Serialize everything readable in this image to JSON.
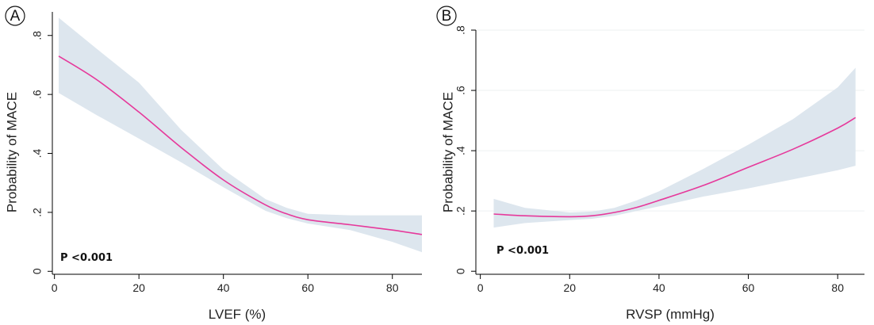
{
  "colors": {
    "curve": "#e6399b",
    "ci_band": "#dde6ee",
    "grid": "#eef0f2",
    "axis": "#000000",
    "text": "#222222"
  },
  "chart_data": [
    {
      "panel_label": "A",
      "type": "line",
      "xlabel": "LVEF (%)",
      "ylabel": "Probability of MACE",
      "xlim": [
        -0.5,
        87
      ],
      "ylim": [
        -0.01,
        0.88
      ],
      "xticks": [
        {
          "value": 0,
          "label": "0"
        },
        {
          "value": 20,
          "label": "20"
        },
        {
          "value": 40,
          "label": "40"
        },
        {
          "value": 60,
          "label": "60"
        },
        {
          "value": 80,
          "label": "80"
        }
      ],
      "yticks": [
        {
          "value": 0,
          "label": "0"
        },
        {
          "value": 0.2,
          "label": ".2"
        },
        {
          "value": 0.4,
          "label": ".4"
        },
        {
          "value": 0.6,
          "label": ".6"
        },
        {
          "value": 0.8,
          "label": ".8"
        }
      ],
      "grid": false,
      "annotation": "P  <0.001",
      "series": [
        {
          "x": [
            1,
            10,
            20,
            30,
            40,
            50,
            55,
            60,
            70,
            80,
            87
          ],
          "y": [
            0.73,
            0.65,
            0.54,
            0.42,
            0.31,
            0.225,
            0.195,
            0.175,
            0.158,
            0.14,
            0.125
          ],
          "lower": [
            0.605,
            0.53,
            0.45,
            0.37,
            0.285,
            0.205,
            0.18,
            0.162,
            0.14,
            0.1,
            0.065
          ],
          "upper": [
            0.86,
            0.755,
            0.64,
            0.48,
            0.345,
            0.245,
            0.215,
            0.195,
            0.19,
            0.19,
            0.19
          ]
        }
      ]
    },
    {
      "panel_label": "B",
      "type": "line",
      "xlabel": "RVSP (mmHg)",
      "ylabel": "Probability of MACE",
      "xlim": [
        -1,
        86
      ],
      "ylim": [
        -0.01,
        0.8
      ],
      "xticks": [
        {
          "value": 0,
          "label": "0"
        },
        {
          "value": 20,
          "label": "20"
        },
        {
          "value": 40,
          "label": "40"
        },
        {
          "value": 60,
          "label": "60"
        },
        {
          "value": 80,
          "label": "80"
        }
      ],
      "yticks": [
        {
          "value": 0,
          "label": "0"
        },
        {
          "value": 0.2,
          "label": ".2"
        },
        {
          "value": 0.4,
          "label": ".4"
        },
        {
          "value": 0.6,
          "label": ".6"
        },
        {
          "value": 0.8,
          "label": ".8"
        }
      ],
      "grid": true,
      "annotation": "P  <0.001",
      "series": [
        {
          "x": [
            3,
            10,
            20,
            25,
            30,
            35,
            40,
            50,
            60,
            70,
            80,
            84
          ],
          "y": [
            0.19,
            0.184,
            0.181,
            0.184,
            0.195,
            0.212,
            0.235,
            0.285,
            0.345,
            0.405,
            0.475,
            0.51
          ],
          "lower": [
            0.145,
            0.16,
            0.17,
            0.174,
            0.184,
            0.2,
            0.215,
            0.248,
            0.275,
            0.305,
            0.335,
            0.35
          ],
          "upper": [
            0.24,
            0.21,
            0.195,
            0.198,
            0.21,
            0.235,
            0.265,
            0.34,
            0.42,
            0.505,
            0.61,
            0.675
          ]
        }
      ]
    }
  ]
}
